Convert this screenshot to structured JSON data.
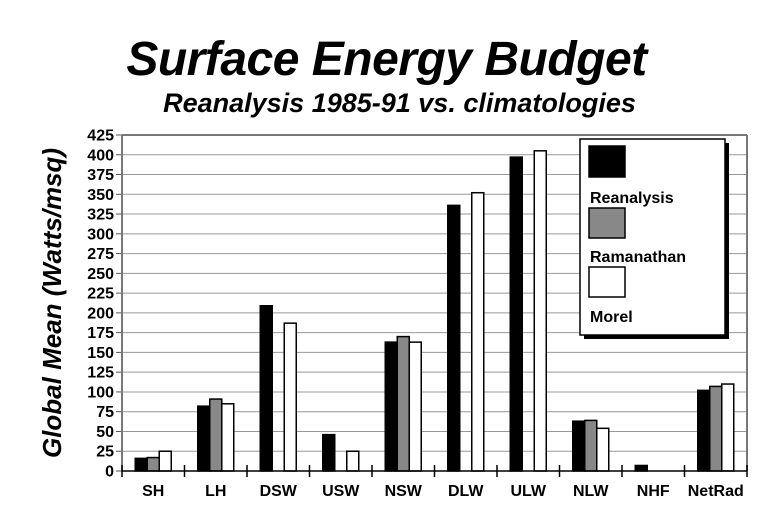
{
  "chart_data": {
    "type": "bar",
    "title": "Surface Energy Budget",
    "subtitle": "Reanalysis 1985-91 vs. climatologies",
    "xlabel": "",
    "ylabel": "Global Mean (Watts/msq)",
    "ylim": [
      0,
      425
    ],
    "ytick_step": 25,
    "yticks": [
      "0",
      "25",
      "50",
      "75",
      "100",
      "125",
      "150",
      "175",
      "200",
      "225",
      "250",
      "275",
      "300",
      "325",
      "350",
      "375",
      "400",
      "425"
    ],
    "grid": true,
    "legend_position": "top-right",
    "categories": [
      "SH",
      "LH",
      "DSW",
      "USW",
      "NSW",
      "DLW",
      "ULW",
      "NLW",
      "NHF",
      "NetRad"
    ],
    "series": [
      {
        "name": "Reanalysis",
        "color": "#000000",
        "values": [
          16,
          82,
          209,
          46,
          163,
          336,
          397,
          63,
          7,
          102
        ]
      },
      {
        "name": "Ramanathan",
        "color": "#888888",
        "values": [
          17,
          91,
          null,
          null,
          170,
          null,
          null,
          64,
          null,
          107
        ]
      },
      {
        "name": "Morel",
        "color": "#ffffff",
        "values": [
          25,
          85,
          187,
          25,
          163,
          352,
          405,
          54,
          null,
          110
        ]
      }
    ]
  }
}
